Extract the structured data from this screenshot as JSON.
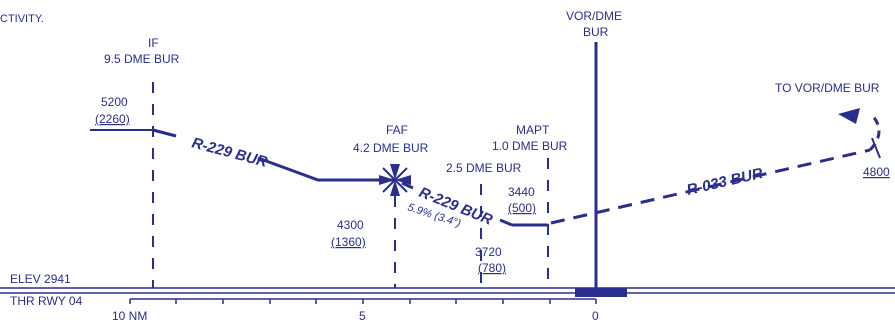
{
  "colors": {
    "ink": "#2a2e8f"
  },
  "header_fragment": "CTIVITY.",
  "fixes": {
    "if_name": "IF",
    "if_dme": "9.5 DME BUR",
    "faf_name": "FAF",
    "faf_dme": "4.2 DME BUR",
    "stepdown_dme": "2.5 DME BUR",
    "mapt_name": "MAPT",
    "mapt_dme": "1.0 DME BUR",
    "navaid_line1": "VOR/DME",
    "navaid_line2": "BUR",
    "missed_approach_label": "TO VOR/DME BUR"
  },
  "altitudes": {
    "if_msl": "5200",
    "if_agl": "(2260)",
    "faf_msl": "4300",
    "faf_agl": "(1360)",
    "stepdown_msl": "3720",
    "stepdown_agl": "(780)",
    "mda_msl": "3440",
    "mda_agl": "(500)",
    "missed_hold_msl": "4800"
  },
  "courses": {
    "initial": "R-229 BUR",
    "final": "R-229 BUR",
    "missed": "R-033 BUR"
  },
  "glidepath": "5.9% (3.4°)",
  "field": {
    "elevation": "ELEV 2941",
    "threshold": "THR RWY 04"
  },
  "distance_scale": {
    "label_10": "10 NM",
    "label_5": "5",
    "label_0": "0"
  }
}
